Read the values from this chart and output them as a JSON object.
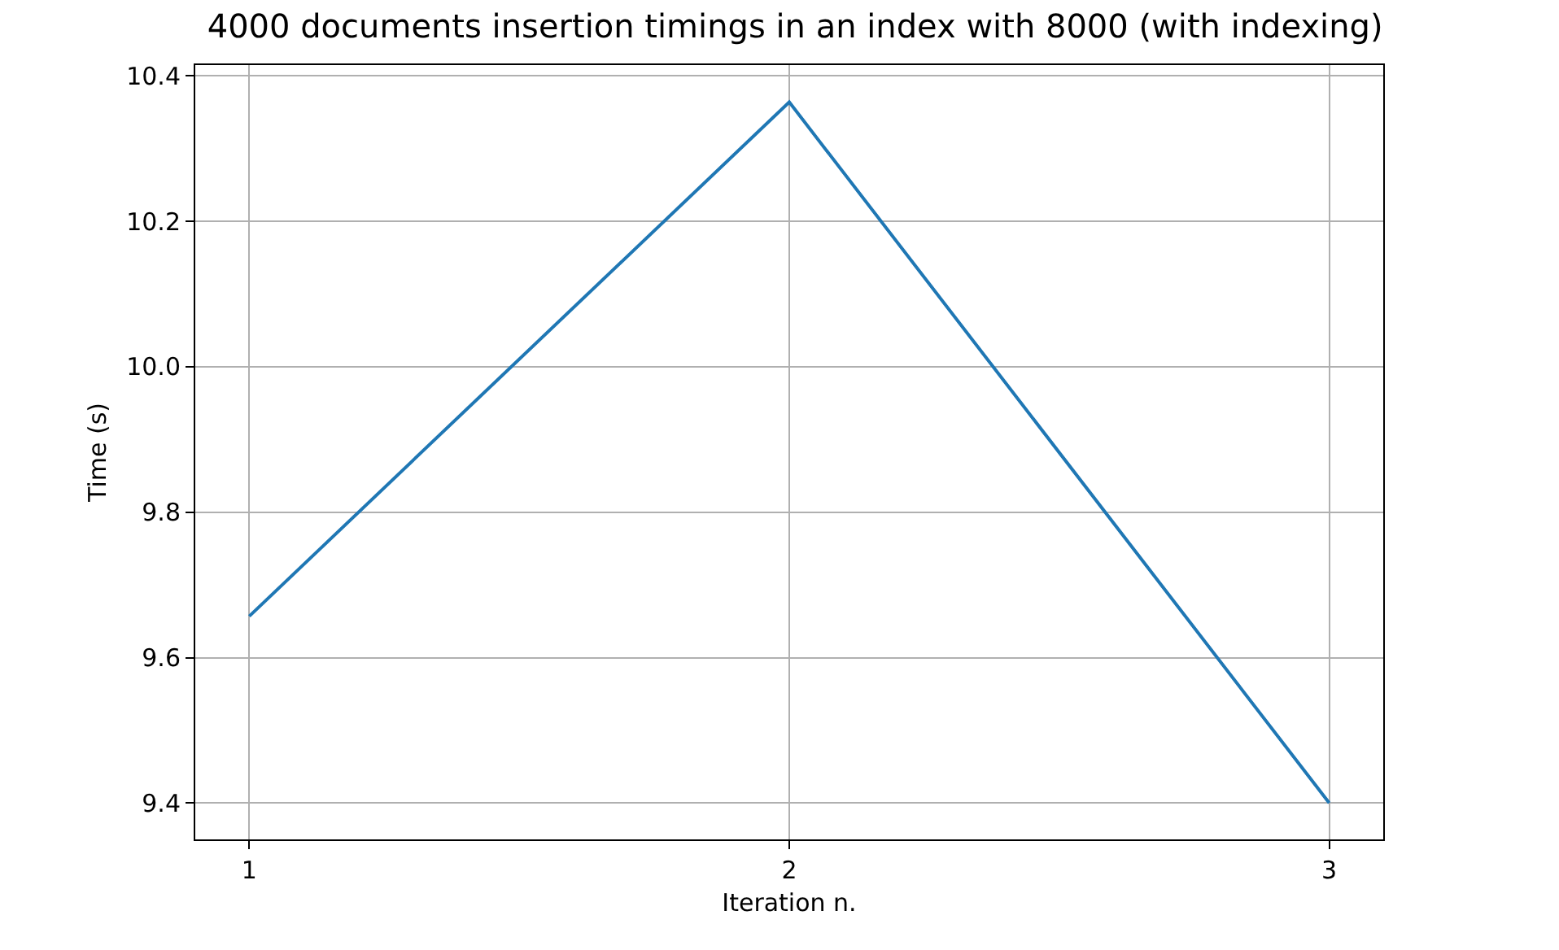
{
  "chart_data": {
    "type": "line",
    "title": "4000 documents insertion timings in an index with 8000 (with indexing)",
    "xlabel": "Iteration n.",
    "ylabel": "Time (s)",
    "x": [
      1,
      2,
      3
    ],
    "series": [
      {
        "color": "#1f77b4",
        "values": [
          9.657,
          10.364,
          9.4
        ]
      }
    ],
    "xlim": [
      0.9,
      3.1
    ],
    "xticks": [
      1,
      2,
      3
    ],
    "ylim": [
      9.35,
      10.415
    ],
    "yticks": [
      {
        "value": 9.4,
        "label": "9.4"
      },
      {
        "value": 9.6,
        "label": "9.6"
      },
      {
        "value": 9.8,
        "label": "9.8"
      },
      {
        "value": 10.0,
        "label": "10.0"
      },
      {
        "value": 10.2,
        "label": "10.2"
      },
      {
        "value": 10.4,
        "label": "10.4"
      }
    ],
    "grid": true,
    "marker": "none",
    "line_style": "solid"
  }
}
